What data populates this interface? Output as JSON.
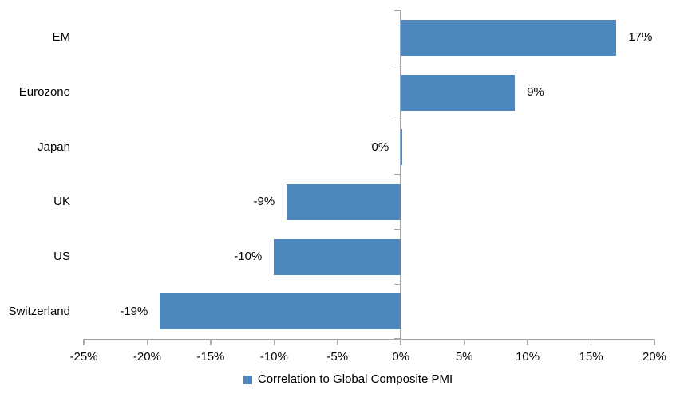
{
  "chart_data": {
    "type": "bar",
    "orientation": "horizontal",
    "title": "",
    "categories": [
      "EM",
      "Eurozone",
      "Japan",
      "UK",
      "US",
      "Switzerland"
    ],
    "values": [
      17,
      9,
      0,
      -9,
      -10,
      -19
    ],
    "value_labels": [
      "17%",
      "9%",
      "0%",
      "-9%",
      "-10%",
      "-19%"
    ],
    "series_name": "Correlation to Global Composite PMI",
    "xlim": [
      -25,
      20
    ],
    "x_ticks": [
      -25,
      -20,
      -15,
      -10,
      -5,
      0,
      5,
      10,
      15,
      20
    ],
    "x_tick_labels": [
      "-25%",
      "-20%",
      "-15%",
      "-10%",
      "-5%",
      "0%",
      "5%",
      "10%",
      "15%",
      "20%"
    ],
    "grid": false,
    "legend_position": "bottom",
    "colors": {
      "bar": "#4E86BE",
      "axis": "#A6A6A6",
      "text": "#000000",
      "background": "#FFFFFF"
    }
  },
  "legend": {
    "marker_icon": "legend-square-icon"
  }
}
